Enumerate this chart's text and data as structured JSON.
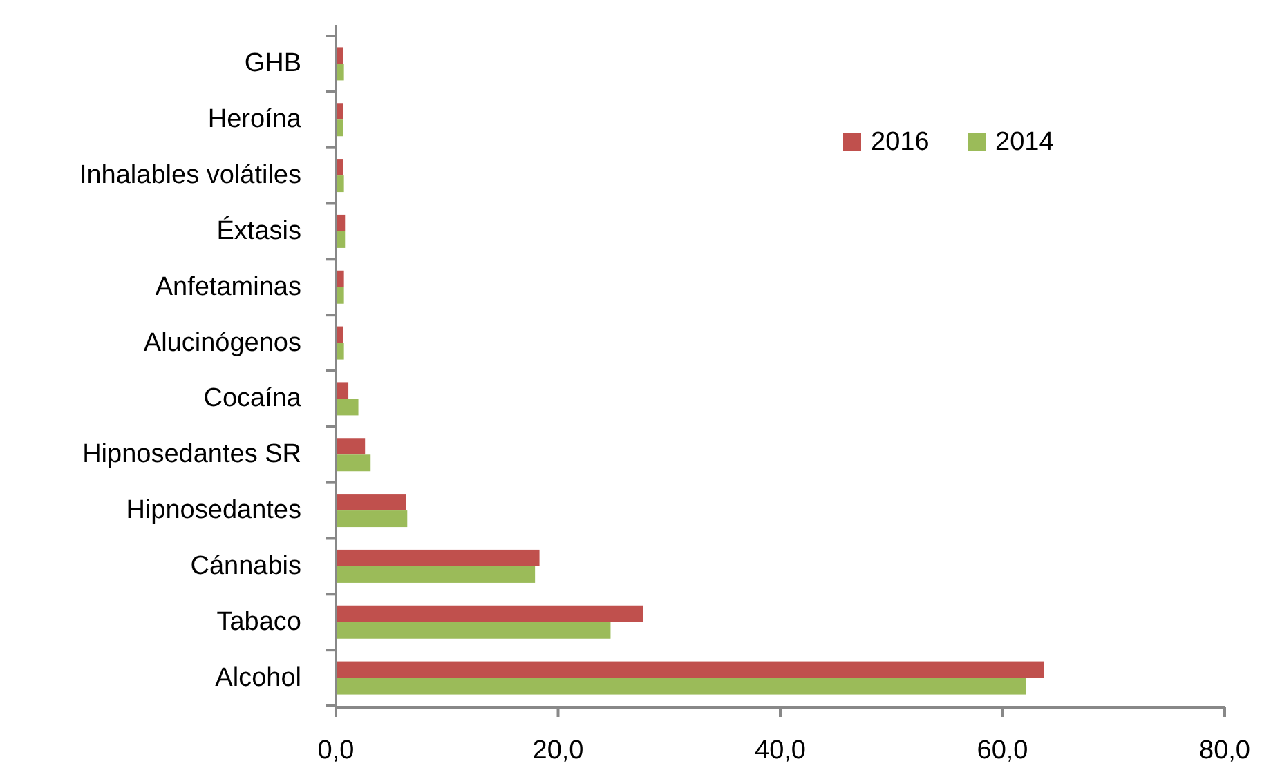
{
  "chart_data": {
    "type": "bar",
    "orientation": "horizontal",
    "categories": [
      "GHB",
      "Heroína",
      "Inhalables volátiles",
      "Éxtasis",
      "Anfetaminas",
      "Alucinógenos",
      "Cocaína",
      "Hipnosedantes SR",
      "Hipnosedantes",
      "Cánnabis",
      "Tabaco",
      "Alcohol"
    ],
    "series": [
      {
        "name": "2016",
        "color": "#c0504d",
        "values": [
          0.5,
          0.5,
          0.5,
          0.7,
          0.6,
          0.5,
          1.0,
          2.5,
          6.2,
          18.2,
          27.5,
          63.6
        ]
      },
      {
        "name": "2014",
        "color": "#9bbb59",
        "values": [
          0.6,
          0.5,
          0.6,
          0.7,
          0.6,
          0.6,
          1.9,
          3.0,
          6.3,
          17.8,
          24.6,
          62.0
        ]
      }
    ],
    "xlim": [
      0,
      80
    ],
    "xticks": [
      {
        "value": 0,
        "label": "0,0"
      },
      {
        "value": 20,
        "label": "20,0"
      },
      {
        "value": 40,
        "label": "40,0"
      },
      {
        "value": 60,
        "label": "60,0"
      },
      {
        "value": 80,
        "label": "80,0"
      }
    ],
    "legend": "top right"
  }
}
